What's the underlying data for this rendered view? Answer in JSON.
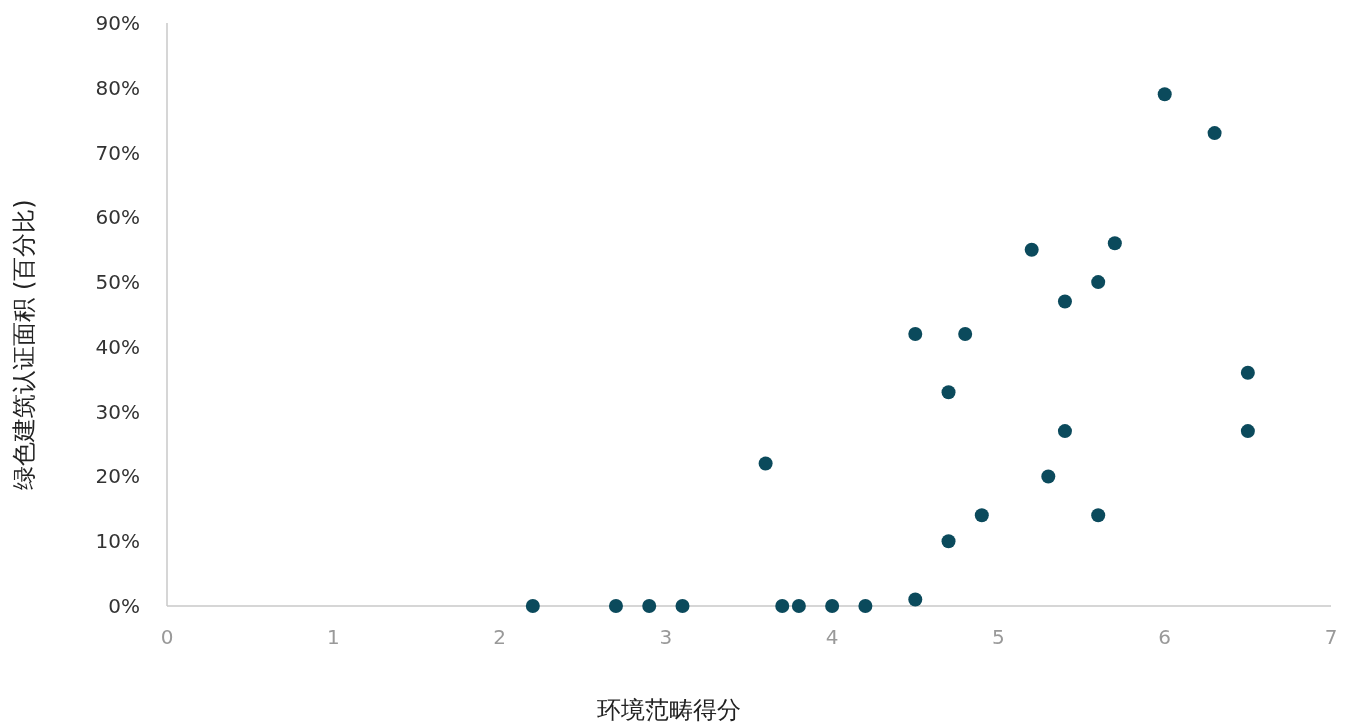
{
  "chart_data": {
    "type": "scatter",
    "xlabel": "环境范畴得分",
    "ylabel": "绿色建筑认证面积 (百分比)",
    "x": [
      2.2,
      2.7,
      2.9,
      3.1,
      3.6,
      3.7,
      3.8,
      4.0,
      4.2,
      4.5,
      4.5,
      4.7,
      4.7,
      4.8,
      4.9,
      5.2,
      5.3,
      5.4,
      5.4,
      5.6,
      5.6,
      5.7,
      6.0,
      6.3,
      6.5,
      6.5
    ],
    "values": [
      0,
      0,
      0,
      0,
      22,
      0,
      0,
      0,
      0,
      1,
      42,
      33,
      10,
      42,
      14,
      55,
      20,
      47,
      27,
      50,
      14,
      56,
      79,
      73,
      36,
      27
    ],
    "color": "#0b4a5c",
    "marker": "circle",
    "grid": false,
    "xlim": [
      0,
      7
    ],
    "xticks": [
      0,
      1,
      2,
      3,
      4,
      5,
      6,
      7
    ],
    "ylim": [
      0,
      90
    ],
    "yticks": [
      {
        "value": 0,
        "label": "0%"
      },
      {
        "value": 10,
        "label": "10%"
      },
      {
        "value": 20,
        "label": "20%"
      },
      {
        "value": 30,
        "label": "30%"
      },
      {
        "value": 40,
        "label": "40%"
      },
      {
        "value": 50,
        "label": "50%"
      },
      {
        "value": 60,
        "label": "60%"
      },
      {
        "value": 70,
        "label": "70%"
      },
      {
        "value": 80,
        "label": "80%"
      },
      {
        "value": 90,
        "label": "90%"
      }
    ]
  }
}
